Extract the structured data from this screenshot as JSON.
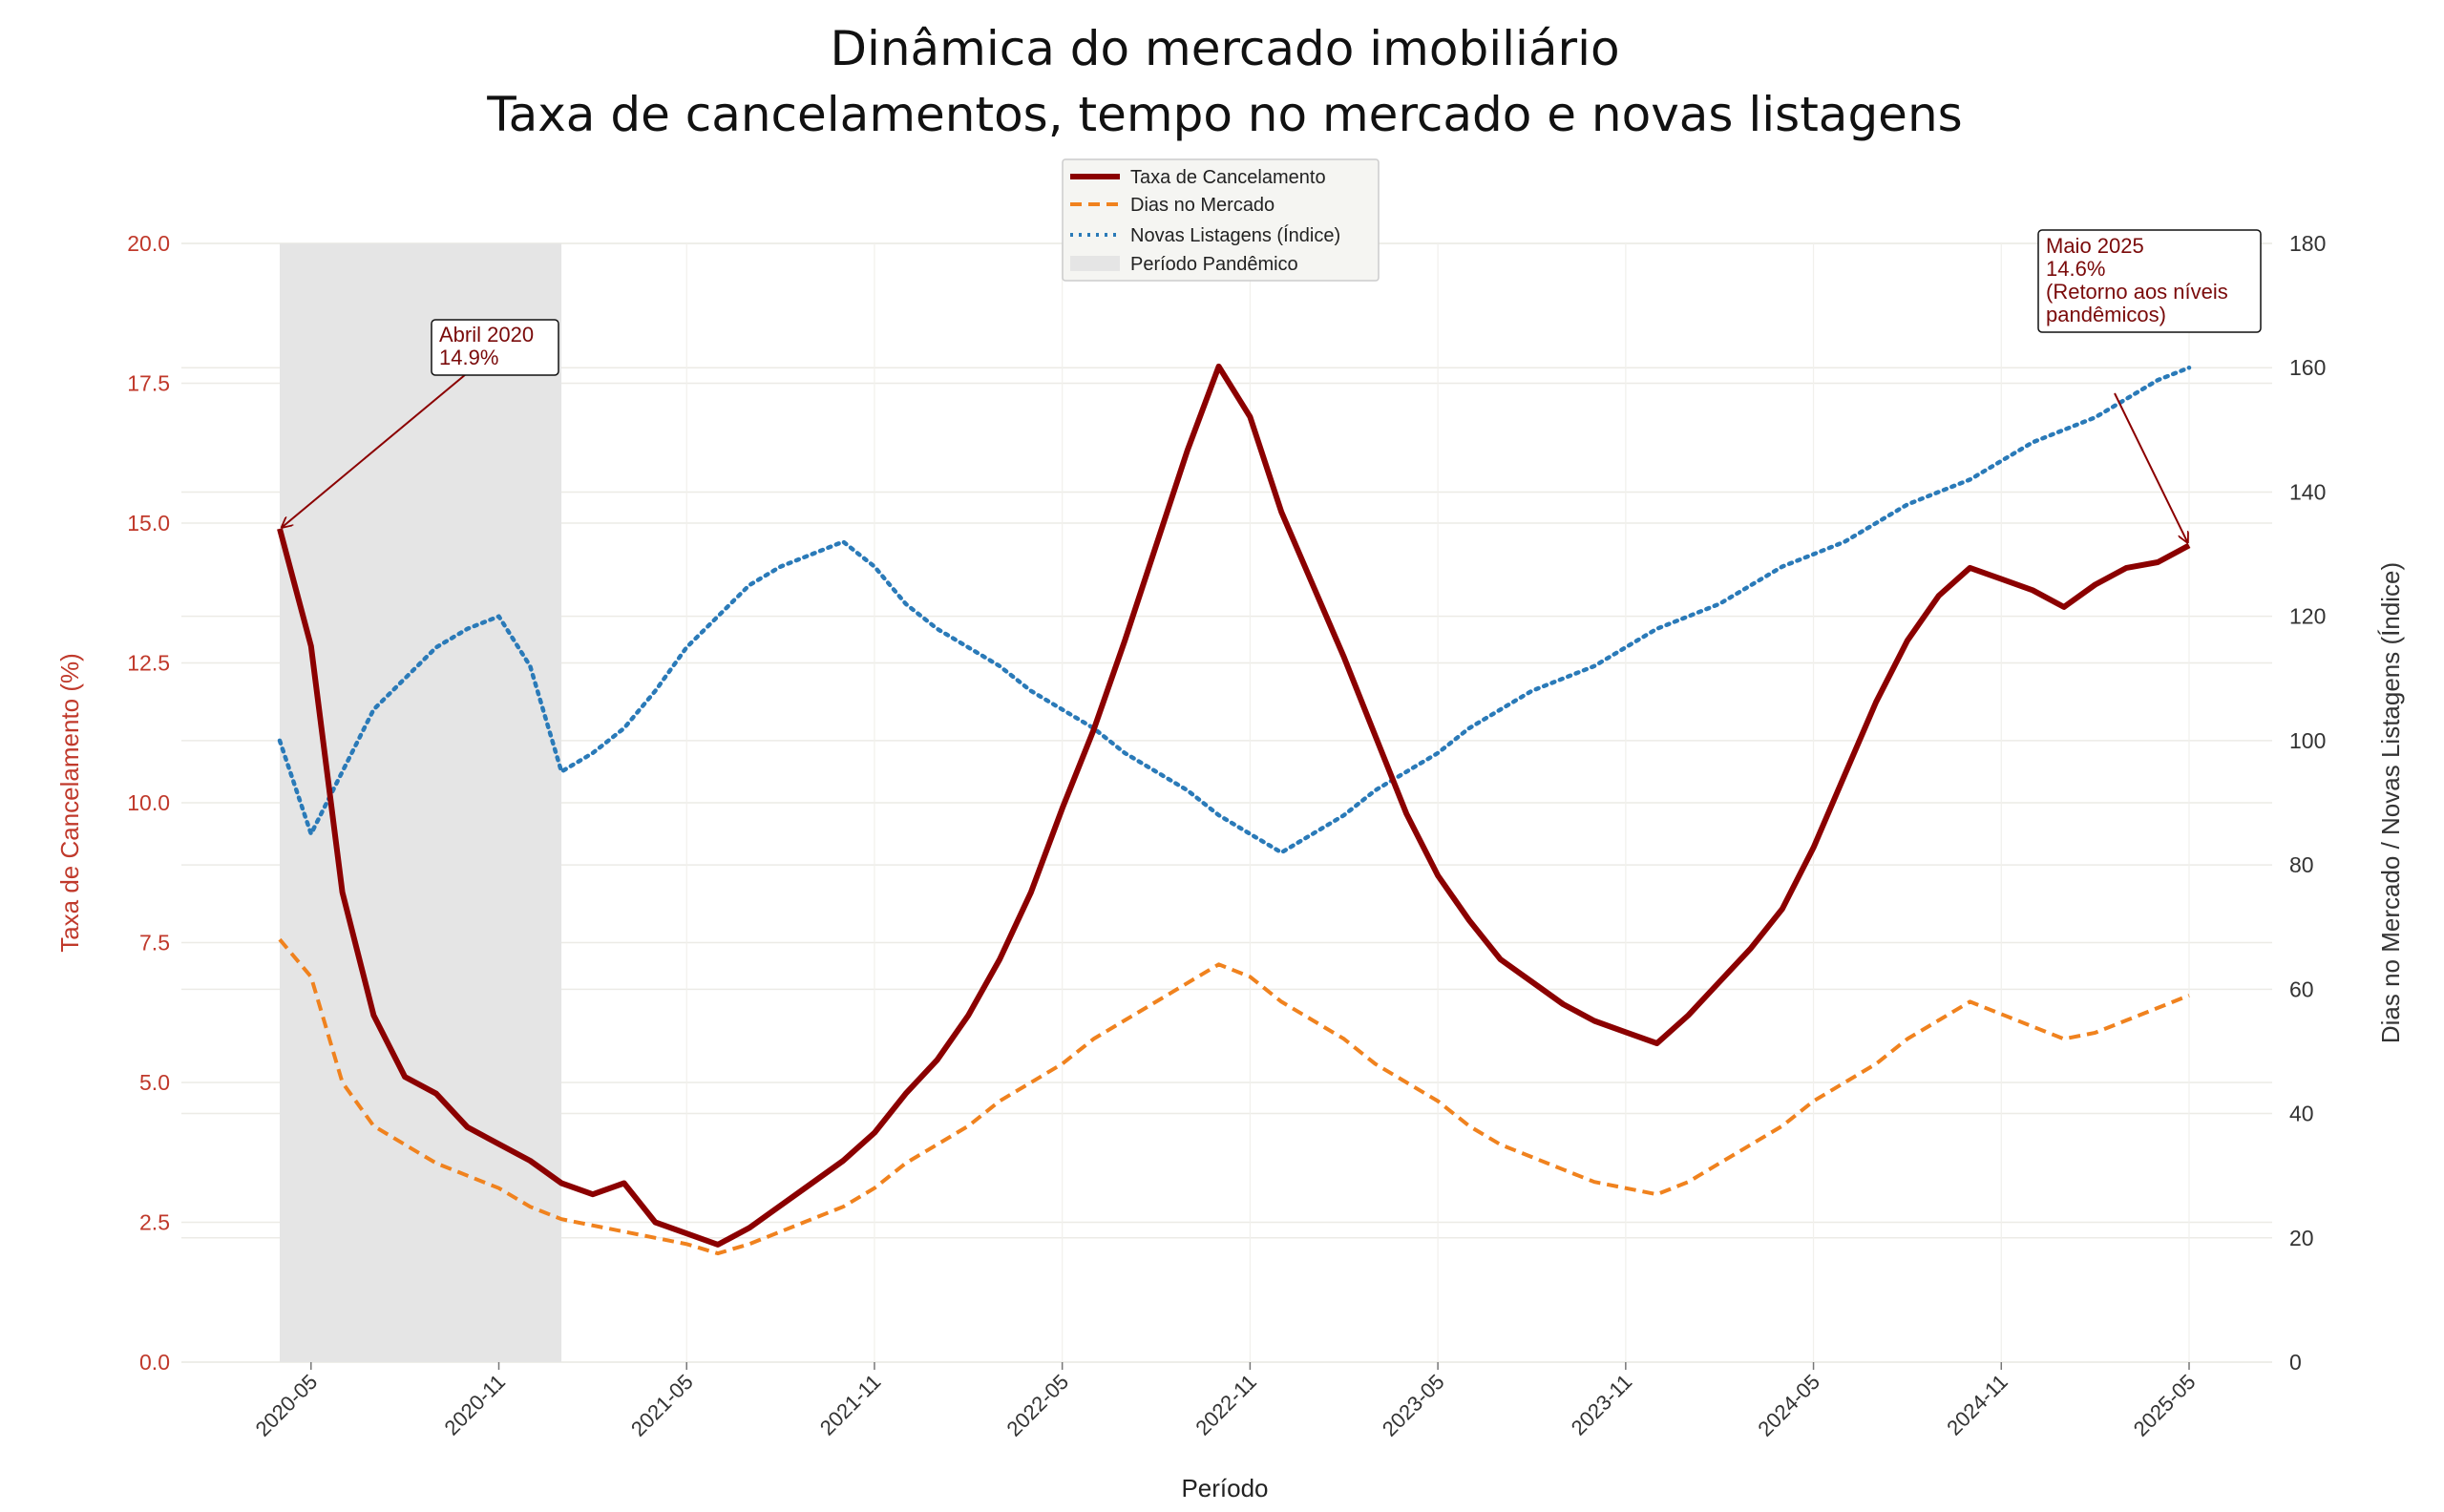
{
  "title_line1": "Dinâmica do mercado imobiliário",
  "title_line2": "Taxa de cancelamentos, tempo no mercado e novas listagens",
  "colors": {
    "cancel_rate": "#8b0000",
    "days_on_market": "#f0821e",
    "new_listings": "#2a7ab8",
    "pandemic_band": "#e5e5e5",
    "left_axis": "#c0392b",
    "right_axis": "#333333"
  },
  "legend": {
    "cancel_rate": "Taxa de Cancelamento",
    "days_on_market": "Dias no Mercado",
    "new_listings": "Novas Listagens (Índice)",
    "pandemic": "Período Pandêmico"
  },
  "annotations": {
    "start": {
      "line1": "Abril 2020",
      "line2": "14.9%"
    },
    "end": {
      "line1": "Maio 2025",
      "line2": "14.6%",
      "line3": "(Retorno aos níveis",
      "line4": "pandêmicos)"
    }
  },
  "chart_data": {
    "type": "line",
    "xlabel": "Período",
    "ylabel_left": "Taxa de Cancelamento (%)",
    "ylabel_right": "Dias no Mercado / Novas Listagens (Índice)",
    "x_start": "2020-04",
    "x_end": "2025-05",
    "x_tick_labels": [
      "2020-05",
      "2020-11",
      "2021-05",
      "2021-11",
      "2022-05",
      "2022-11",
      "2023-05",
      "2023-11",
      "2024-05",
      "2024-11",
      "2025-05"
    ],
    "ylim_left": [
      0,
      20
    ],
    "yticks_left": [
      "0.0",
      "2.5",
      "5.0",
      "7.5",
      "10.0",
      "12.5",
      "15.0",
      "17.5",
      "20.0"
    ],
    "ylim_right": [
      0,
      180
    ],
    "yticks_right": [
      "0",
      "20",
      "40",
      "60",
      "80",
      "100",
      "120",
      "140",
      "160",
      "180"
    ],
    "pandemic_period": [
      "2020-04",
      "2021-01"
    ],
    "grid": true,
    "legend_position": "top-center",
    "series": [
      {
        "name": "Taxa de Cancelamento",
        "axis": "left",
        "style": "solid",
        "values": [
          14.9,
          12.8,
          8.4,
          6.2,
          5.1,
          4.8,
          4.2,
          3.9,
          3.6,
          3.2,
          3.0,
          3.2,
          2.5,
          2.3,
          2.1,
          2.4,
          2.8,
          3.2,
          3.6,
          4.1,
          4.8,
          5.4,
          6.2,
          7.2,
          8.4,
          9.9,
          11.3,
          12.9,
          14.6,
          16.3,
          17.8,
          16.9,
          15.2,
          13.9,
          12.6,
          11.2,
          9.8,
          8.7,
          7.9,
          7.2,
          6.8,
          6.4,
          6.1,
          5.9,
          5.7,
          6.2,
          6.8,
          7.4,
          8.1,
          9.2,
          10.5,
          11.8,
          12.9,
          13.7,
          14.2,
          14.0,
          13.8,
          13.5,
          13.9,
          14.2,
          14.3,
          14.6
        ]
      },
      {
        "name": "Dias no Mercado",
        "axis": "right",
        "style": "dashed",
        "values": [
          68,
          62,
          45,
          38,
          35,
          32,
          30,
          28,
          25,
          23,
          22,
          21,
          20,
          19,
          17.5,
          19,
          21,
          23,
          25,
          28,
          32,
          35,
          38,
          42,
          45,
          48,
          52,
          55,
          58,
          61,
          64,
          62,
          58,
          55,
          52,
          48,
          45,
          42,
          38,
          35,
          33,
          31,
          29,
          28,
          27,
          29,
          32,
          35,
          38,
          42,
          45,
          48,
          52,
          55,
          58,
          56,
          54,
          52,
          53,
          55,
          57,
          59
        ]
      },
      {
        "name": "Novas Listagens (Índice)",
        "axis": "right",
        "style": "dotted",
        "values": [
          100,
          85,
          95,
          105,
          110,
          115,
          118,
          120,
          112,
          95,
          98,
          102,
          108,
          115,
          120,
          125,
          128,
          130,
          132,
          128,
          122,
          118,
          115,
          112,
          108,
          105,
          102,
          98,
          95,
          92,
          88,
          85,
          82,
          85,
          88,
          92,
          95,
          98,
          102,
          105,
          108,
          110,
          112,
          115,
          118,
          120,
          122,
          125,
          128,
          130,
          132,
          135,
          138,
          140,
          142,
          145,
          148,
          150,
          152,
          155,
          158,
          160
        ]
      }
    ]
  }
}
